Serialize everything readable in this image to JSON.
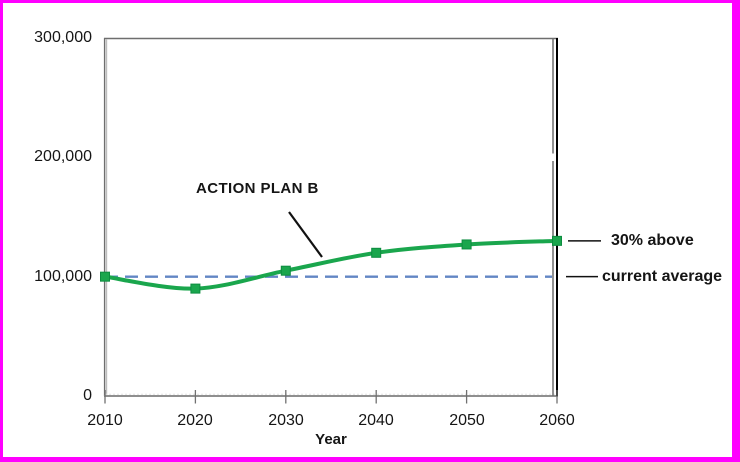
{
  "frame": {
    "border_color": "#ff00ff",
    "background_color": "#ffffff"
  },
  "chart_data": {
    "type": "line",
    "title": "",
    "xlabel": "Year",
    "ylabel": "",
    "x": [
      2010,
      2020,
      2030,
      2040,
      2050,
      2060
    ],
    "x_tick_labels": [
      "2010",
      "2020",
      "2030",
      "2040",
      "2050",
      "2060"
    ],
    "y_ticks": [
      0,
      100000,
      200000,
      300000
    ],
    "y_tick_labels_top_to_bottom": [
      "300,000",
      "200,000",
      "100,000",
      "0"
    ],
    "ylim": [
      0,
      300000
    ],
    "xlim": [
      2010,
      2060
    ],
    "grid": false,
    "legend": "none",
    "series": [
      {
        "name": "ACTION PLAN B",
        "values": [
          100000,
          90000,
          105000,
          120000,
          127000,
          130000
        ],
        "color": "#1aa64d",
        "marker": "square",
        "smooth": true
      }
    ],
    "reference_line": {
      "label": "current average",
      "value": 100000,
      "style": "dashed",
      "color": "#6286c4"
    },
    "callouts": [
      {
        "text": "30% above",
        "at_value": 130000
      },
      {
        "text": "current average",
        "at_value": 100000
      }
    ],
    "annotation": {
      "text": "ACTION PLAN B",
      "points_to": "series curve between 2030 and 2040"
    }
  }
}
